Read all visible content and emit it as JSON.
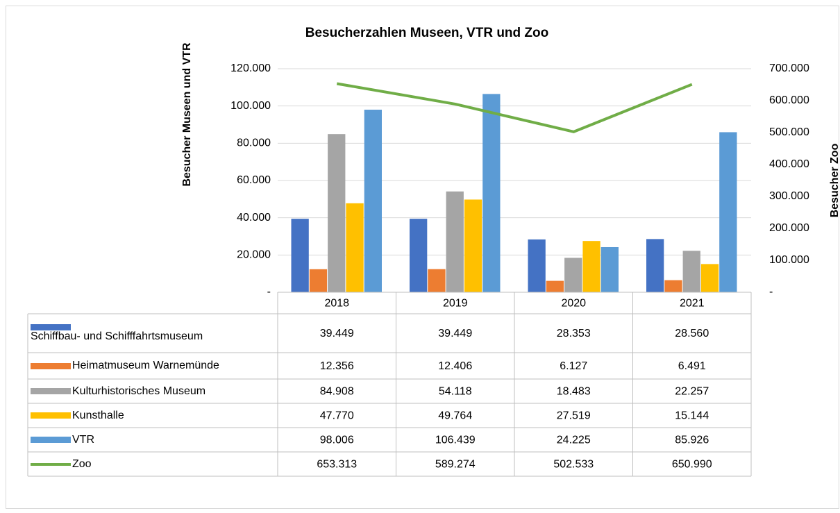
{
  "chart_data": {
    "type": "bar",
    "title": "Besucherzahlen Museen, VTR und Zoo",
    "ylabel": "Besucher Museen und VTR",
    "y2label": "Besucher Zoo",
    "categories": [
      "2018",
      "2019",
      "2020",
      "2021"
    ],
    "ylim": [
      0,
      120000
    ],
    "yticks": [
      {
        "value": 0,
        "label": "-"
      },
      {
        "value": 20000,
        "label": "20.000"
      },
      {
        "value": 40000,
        "label": "40.000"
      },
      {
        "value": 60000,
        "label": "60.000"
      },
      {
        "value": 80000,
        "label": "80.000"
      },
      {
        "value": 100000,
        "label": "100.000"
      },
      {
        "value": 120000,
        "label": "120.000"
      }
    ],
    "y2lim": [
      0,
      700000
    ],
    "y2ticks": [
      {
        "value": 0,
        "label": "-"
      },
      {
        "value": 100000,
        "label": "100.000"
      },
      {
        "value": 200000,
        "label": "200.000"
      },
      {
        "value": 300000,
        "label": "300.000"
      },
      {
        "value": 400000,
        "label": "400.000"
      },
      {
        "value": 500000,
        "label": "500.000"
      },
      {
        "value": 600000,
        "label": "600.000"
      },
      {
        "value": 700000,
        "label": "700.000"
      }
    ],
    "grid": true,
    "data_table": true,
    "series": [
      {
        "name": "Schiffbau- und Schifffahrtsmuseum",
        "type": "bar",
        "color": "#4472c4",
        "values": [
          39449,
          39449,
          28353,
          28560
        ],
        "value_labels": [
          "39.449",
          "39.449",
          "28.353",
          "28.560"
        ]
      },
      {
        "name": "Heimatmuseum Warnemünde",
        "type": "bar",
        "color": "#ed7d31",
        "values": [
          12356,
          12406,
          6127,
          6491
        ],
        "value_labels": [
          "12.356",
          "12.406",
          "6.127",
          "6.491"
        ]
      },
      {
        "name": "Kulturhistorisches Museum",
        "type": "bar",
        "color": "#a5a5a5",
        "values": [
          84908,
          54118,
          18483,
          22257
        ],
        "value_labels": [
          "84.908",
          "54.118",
          "18.483",
          "22.257"
        ]
      },
      {
        "name": "Kunsthalle",
        "type": "bar",
        "color": "#ffc000",
        "values": [
          47770,
          49764,
          27519,
          15144
        ],
        "value_labels": [
          "47.770",
          "49.764",
          "27.519",
          "15.144"
        ]
      },
      {
        "name": "VTR",
        "type": "bar",
        "color": "#5b9bd5",
        "values": [
          98006,
          106439,
          24225,
          85926
        ],
        "value_labels": [
          "98.006",
          "106.439",
          "24.225",
          "85.926"
        ]
      },
      {
        "name": "Zoo",
        "type": "line",
        "axis": "y2",
        "color": "#70ad47",
        "values": [
          653313,
          589274,
          502533,
          650990
        ],
        "value_labels": [
          "653.313",
          "589.274",
          "502.533",
          "650.990"
        ]
      }
    ]
  }
}
